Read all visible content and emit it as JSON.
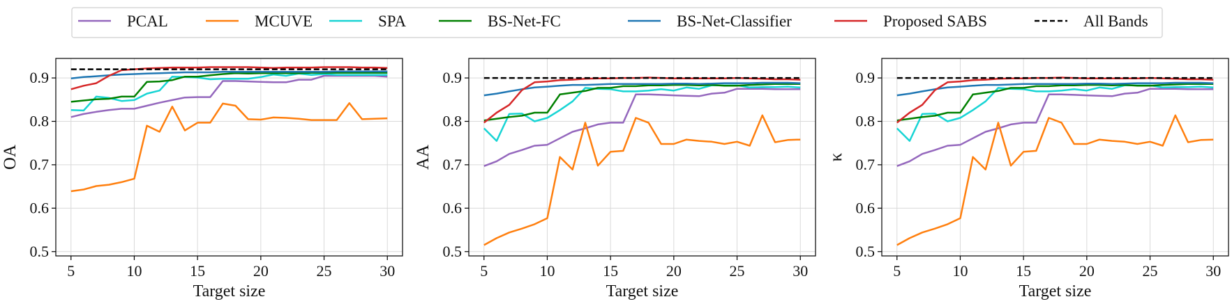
{
  "x_ticks": [
    5,
    10,
    15,
    20,
    25,
    30
  ],
  "y_ticks": [
    "0.5",
    "0.6",
    "0.7",
    "0.8",
    "0.9"
  ],
  "legend": [
    {
      "label": "PCAL",
      "color": "#9467bd",
      "dash": false
    },
    {
      "label": "MCUVE",
      "color": "#ff7f0e",
      "dash": false
    },
    {
      "label": "SPA",
      "color": "#17d4d4",
      "dash": false
    },
    {
      "label": "BS-Net-FC",
      "color": "#008000",
      "dash": false
    },
    {
      "label": "BS-Net-Classifier",
      "color": "#1f77b4",
      "dash": false
    },
    {
      "label": "Proposed SABS",
      "color": "#d62728",
      "dash": false
    },
    {
      "label": "All Bands",
      "color": "#000000",
      "dash": true
    }
  ],
  "chart_data": [
    {
      "type": "line",
      "xlabel": "Target size",
      "ylabel": "OA",
      "xlim": [
        3.8,
        31.2
      ],
      "ylim": [
        0.49,
        0.945
      ],
      "grid": true,
      "x": [
        5,
        6,
        7,
        8,
        9,
        10,
        11,
        12,
        13,
        14,
        15,
        16,
        17,
        18,
        19,
        20,
        21,
        22,
        23,
        24,
        25,
        26,
        27,
        28,
        29,
        30
      ],
      "series": [
        {
          "name": "PCAL",
          "values": [
            0.81,
            0.817,
            0.822,
            0.826,
            0.829,
            0.829,
            0.836,
            0.843,
            0.849,
            0.855,
            0.856,
            0.856,
            0.893,
            0.893,
            0.892,
            0.891,
            0.89,
            0.89,
            0.896,
            0.896,
            0.905,
            0.905,
            0.905,
            0.905,
            0.905,
            0.903
          ]
        },
        {
          "name": "MCUVE",
          "values": [
            0.639,
            0.643,
            0.651,
            0.654,
            0.66,
            0.668,
            0.79,
            0.776,
            0.834,
            0.779,
            0.797,
            0.797,
            0.841,
            0.836,
            0.805,
            0.804,
            0.809,
            0.808,
            0.806,
            0.803,
            0.803,
            0.803,
            0.842,
            0.805,
            0.806,
            0.807
          ]
        },
        {
          "name": "SPA",
          "values": [
            0.826,
            0.825,
            0.857,
            0.854,
            0.847,
            0.849,
            0.864,
            0.871,
            0.903,
            0.902,
            0.901,
            0.897,
            0.898,
            0.898,
            0.898,
            0.902,
            0.908,
            0.905,
            0.91,
            0.907,
            0.909,
            0.907,
            0.907,
            0.907,
            0.907,
            0.907
          ]
        },
        {
          "name": "BS-Net-FC",
          "values": [
            0.845,
            0.848,
            0.851,
            0.852,
            0.857,
            0.857,
            0.891,
            0.892,
            0.895,
            0.903,
            0.903,
            0.906,
            0.909,
            0.911,
            0.91,
            0.911,
            0.911,
            0.911,
            0.911,
            0.912,
            0.912,
            0.912,
            0.912,
            0.912,
            0.912,
            0.912
          ]
        },
        {
          "name": "BS-Net-Classifier",
          "values": [
            0.899,
            0.902,
            0.904,
            0.906,
            0.908,
            0.909,
            0.91,
            0.911,
            0.912,
            0.913,
            0.913,
            0.913,
            0.914,
            0.914,
            0.914,
            0.914,
            0.914,
            0.914,
            0.914,
            0.914,
            0.914,
            0.915,
            0.915,
            0.915,
            0.915,
            0.915
          ]
        },
        {
          "name": "Proposed SABS",
          "values": [
            0.874,
            0.882,
            0.888,
            0.905,
            0.918,
            0.92,
            0.922,
            0.923,
            0.924,
            0.924,
            0.924,
            0.925,
            0.925,
            0.925,
            0.925,
            0.924,
            0.923,
            0.924,
            0.924,
            0.924,
            0.925,
            0.925,
            0.925,
            0.924,
            0.924,
            0.923
          ]
        },
        {
          "name": "All Bands",
          "values": [
            0.92,
            0.92,
            0.92,
            0.92,
            0.92,
            0.92,
            0.92,
            0.92,
            0.92,
            0.92,
            0.92,
            0.92,
            0.92,
            0.92,
            0.92,
            0.92,
            0.92,
            0.92,
            0.92,
            0.92,
            0.92,
            0.92,
            0.92,
            0.92,
            0.92,
            0.92
          ]
        }
      ]
    },
    {
      "type": "line",
      "xlabel": "Target size",
      "ylabel": "AA",
      "xlim": [
        3.8,
        31.2
      ],
      "ylim": [
        0.49,
        0.945
      ],
      "grid": true,
      "x": [
        5,
        6,
        7,
        8,
        9,
        10,
        11,
        12,
        13,
        14,
        15,
        16,
        17,
        18,
        19,
        20,
        21,
        22,
        23,
        24,
        25,
        26,
        27,
        28,
        29,
        30
      ],
      "series": [
        {
          "name": "PCAL",
          "values": [
            0.697,
            0.708,
            0.725,
            0.734,
            0.744,
            0.746,
            0.761,
            0.776,
            0.784,
            0.793,
            0.797,
            0.797,
            0.862,
            0.862,
            0.861,
            0.86,
            0.859,
            0.858,
            0.864,
            0.866,
            0.875,
            0.875,
            0.875,
            0.874,
            0.874,
            0.874
          ]
        },
        {
          "name": "MCUVE",
          "values": [
            0.515,
            0.531,
            0.544,
            0.553,
            0.563,
            0.577,
            0.718,
            0.689,
            0.797,
            0.698,
            0.73,
            0.732,
            0.808,
            0.797,
            0.748,
            0.748,
            0.758,
            0.755,
            0.753,
            0.748,
            0.753,
            0.744,
            0.814,
            0.752,
            0.757,
            0.758
          ]
        },
        {
          "name": "SPA",
          "values": [
            0.784,
            0.755,
            0.817,
            0.818,
            0.8,
            0.808,
            0.826,
            0.846,
            0.877,
            0.875,
            0.874,
            0.869,
            0.869,
            0.871,
            0.874,
            0.871,
            0.878,
            0.875,
            0.883,
            0.883,
            0.883,
            0.878,
            0.879,
            0.879,
            0.88,
            0.878
          ]
        },
        {
          "name": "BS-Net-FC",
          "values": [
            0.802,
            0.806,
            0.81,
            0.813,
            0.82,
            0.82,
            0.862,
            0.866,
            0.87,
            0.877,
            0.877,
            0.881,
            0.881,
            0.883,
            0.883,
            0.884,
            0.884,
            0.883,
            0.884,
            0.882,
            0.882,
            0.884,
            0.885,
            0.886,
            0.886,
            0.886
          ]
        },
        {
          "name": "BS-Net-Classifier",
          "values": [
            0.86,
            0.864,
            0.869,
            0.874,
            0.878,
            0.88,
            0.882,
            0.884,
            0.884,
            0.885,
            0.886,
            0.886,
            0.886,
            0.886,
            0.886,
            0.887,
            0.887,
            0.886,
            0.887,
            0.888,
            0.888,
            0.888,
            0.889,
            0.889,
            0.889,
            0.888
          ]
        },
        {
          "name": "Proposed SABS",
          "values": [
            0.797,
            0.82,
            0.838,
            0.872,
            0.89,
            0.892,
            0.895,
            0.896,
            0.898,
            0.899,
            0.899,
            0.9,
            0.9,
            0.901,
            0.9,
            0.899,
            0.899,
            0.899,
            0.899,
            0.899,
            0.9,
            0.899,
            0.898,
            0.897,
            0.897,
            0.896
          ]
        },
        {
          "name": "All Bands",
          "values": [
            0.9,
            0.9,
            0.9,
            0.9,
            0.9,
            0.9,
            0.9,
            0.9,
            0.9,
            0.9,
            0.9,
            0.9,
            0.9,
            0.9,
            0.9,
            0.9,
            0.9,
            0.9,
            0.9,
            0.9,
            0.9,
            0.9,
            0.9,
            0.9,
            0.9,
            0.9
          ]
        }
      ]
    },
    {
      "type": "line",
      "xlabel": "Target size",
      "ylabel": "κ",
      "xlim": [
        3.8,
        31.2
      ],
      "ylim": [
        0.49,
        0.945
      ],
      "grid": true,
      "x": [
        5,
        6,
        7,
        8,
        9,
        10,
        11,
        12,
        13,
        14,
        15,
        16,
        17,
        18,
        19,
        20,
        21,
        22,
        23,
        24,
        25,
        26,
        27,
        28,
        29,
        30
      ],
      "series": [
        {
          "name": "PCAL",
          "values": [
            0.697,
            0.708,
            0.725,
            0.734,
            0.744,
            0.746,
            0.761,
            0.776,
            0.784,
            0.793,
            0.797,
            0.797,
            0.862,
            0.862,
            0.861,
            0.86,
            0.859,
            0.858,
            0.864,
            0.866,
            0.875,
            0.875,
            0.875,
            0.874,
            0.874,
            0.874
          ]
        },
        {
          "name": "MCUVE",
          "values": [
            0.515,
            0.531,
            0.544,
            0.553,
            0.563,
            0.577,
            0.718,
            0.689,
            0.797,
            0.698,
            0.73,
            0.732,
            0.808,
            0.797,
            0.748,
            0.748,
            0.758,
            0.755,
            0.753,
            0.748,
            0.753,
            0.744,
            0.814,
            0.752,
            0.757,
            0.758
          ]
        },
        {
          "name": "SPA",
          "values": [
            0.784,
            0.755,
            0.817,
            0.818,
            0.8,
            0.808,
            0.826,
            0.846,
            0.877,
            0.875,
            0.874,
            0.869,
            0.869,
            0.871,
            0.874,
            0.871,
            0.878,
            0.875,
            0.883,
            0.883,
            0.883,
            0.878,
            0.879,
            0.879,
            0.88,
            0.878
          ]
        },
        {
          "name": "BS-Net-FC",
          "values": [
            0.802,
            0.806,
            0.81,
            0.813,
            0.82,
            0.82,
            0.862,
            0.866,
            0.87,
            0.877,
            0.877,
            0.881,
            0.881,
            0.883,
            0.883,
            0.884,
            0.884,
            0.883,
            0.884,
            0.882,
            0.882,
            0.884,
            0.885,
            0.886,
            0.886,
            0.886
          ]
        },
        {
          "name": "BS-Net-Classifier",
          "values": [
            0.86,
            0.864,
            0.869,
            0.874,
            0.878,
            0.88,
            0.882,
            0.884,
            0.884,
            0.885,
            0.886,
            0.886,
            0.886,
            0.886,
            0.886,
            0.887,
            0.887,
            0.886,
            0.887,
            0.888,
            0.888,
            0.888,
            0.889,
            0.889,
            0.889,
            0.888
          ]
        },
        {
          "name": "Proposed SABS",
          "values": [
            0.797,
            0.82,
            0.838,
            0.872,
            0.89,
            0.892,
            0.895,
            0.896,
            0.898,
            0.899,
            0.899,
            0.9,
            0.9,
            0.901,
            0.9,
            0.899,
            0.899,
            0.899,
            0.899,
            0.899,
            0.9,
            0.899,
            0.898,
            0.897,
            0.897,
            0.896
          ]
        },
        {
          "name": "All Bands",
          "values": [
            0.9,
            0.9,
            0.9,
            0.9,
            0.9,
            0.9,
            0.9,
            0.9,
            0.9,
            0.9,
            0.9,
            0.9,
            0.9,
            0.9,
            0.9,
            0.9,
            0.9,
            0.9,
            0.9,
            0.9,
            0.9,
            0.9,
            0.9,
            0.9,
            0.9,
            0.9
          ]
        }
      ]
    }
  ]
}
